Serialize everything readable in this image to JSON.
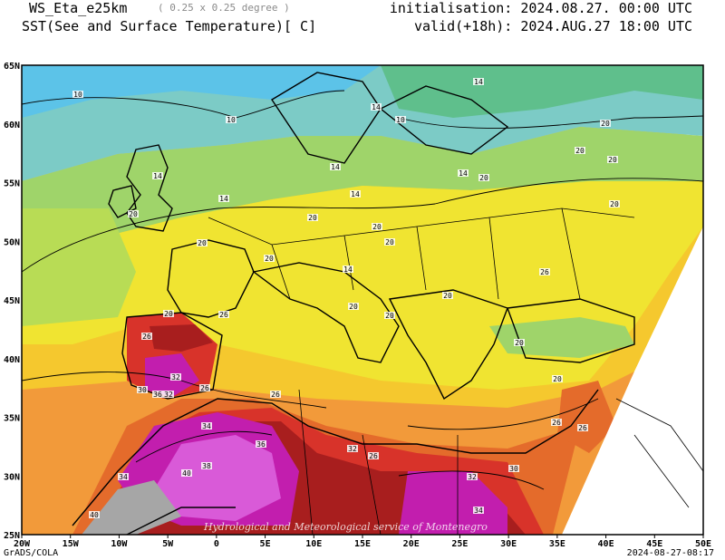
{
  "header": {
    "model": "WS_Eta_e25km",
    "resolution": "( 0.25 x 0.25 degree )",
    "variable": "SST(See and Surface Temperature)[ C]",
    "initialisation": "initialisation: 2024.08.27. 00:00 UTC",
    "valid": "valid(+18h): 2024.AUG.27 18:00 UTC"
  },
  "axes": {
    "lon_ticks": [
      "20W",
      "15W",
      "10W",
      "5W",
      "0",
      "5E",
      "10E",
      "15E",
      "20E",
      "25E",
      "30E",
      "35E",
      "40E",
      "45E",
      "50E"
    ],
    "lat_ticks": [
      "25N",
      "30N",
      "35N",
      "40N",
      "45N",
      "50N",
      "55N",
      "60N",
      "65N"
    ]
  },
  "contour_labels": [
    "10",
    "10",
    "10",
    "14",
    "14",
    "14",
    "14",
    "14",
    "14",
    "14",
    "14",
    "20",
    "20",
    "20",
    "20",
    "20",
    "20",
    "20",
    "20",
    "20",
    "20",
    "20",
    "20",
    "20",
    "20",
    "20",
    "20",
    "20",
    "26",
    "26",
    "26",
    "26",
    "26",
    "26",
    "26",
    "26",
    "30",
    "30",
    "32",
    "32",
    "32",
    "32",
    "34",
    "34",
    "34",
    "36",
    "36",
    "38",
    "40",
    "40"
  ],
  "colors": {
    "sea_cold": "#5cc3e8",
    "cool": "#7ccbc6",
    "mild": "#5fbf8c",
    "green": "#9fd46a",
    "yellow": "#f0e431",
    "gold": "#f5c82e",
    "orange": "#f29a3a",
    "dark_orange": "#e46b2b",
    "red": "#d8332a",
    "dark_red": "#a81e1e",
    "magenta": "#c21eae",
    "violet": "#d95ad8",
    "grey": "#a6a6a6"
  },
  "footer": {
    "left": "GrADS/COLA",
    "right": "2024-08-27-08:17",
    "watermark": "Hydrological and Meteorological service of Montenegro"
  }
}
